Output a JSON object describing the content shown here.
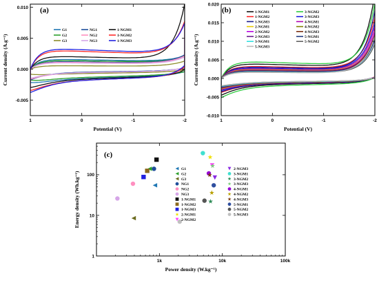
{
  "chart_data": [
    {
      "panel": "(a)",
      "type": "line",
      "title": "",
      "xlabel": "Potential (V)",
      "ylabel": "Current density (A.g⁻¹)",
      "xlim": [
        1.0,
        -2.0
      ],
      "ylim": [
        -0.0075,
        0.0105
      ],
      "xticks": [
        {
          "v": 1,
          "label": "1"
        },
        {
          "v": 0,
          "label": "0"
        },
        {
          "v": -1,
          "label": "-1"
        },
        {
          "v": -2,
          "label": "-2"
        }
      ],
      "yticks": [
        {
          "v": 0.01,
          "label": "0.010"
        },
        {
          "v": 0.005,
          "label": "0.005"
        },
        {
          "v": 0.0,
          "label": "0.000"
        },
        {
          "v": -0.005,
          "label": "-0.005"
        }
      ],
      "legend_position": "top",
      "legend_columns": 3,
      "series": [
        {
          "name": "G1",
          "color": "#1f77b4",
          "params": {
            "g": 0.0017,
            "b": 0.0017,
            "t": 0.001,
            "bt": 0.0006,
            "a": 1.4,
            "k": 10
          }
        },
        {
          "name": "G2",
          "color": "#2ca02c",
          "params": {
            "g": 0.0015,
            "b": 0.0015,
            "t": 0.0011,
            "bt": 0.0005,
            "a": 1.3,
            "k": 10
          }
        },
        {
          "name": "G3",
          "color": "#8c8c2a",
          "params": {
            "g": 0.0006,
            "b": 0.0008,
            "t": 0.0009,
            "bt": 0.0004,
            "a": 1.5,
            "k": 10
          }
        },
        {
          "name": "NG1",
          "color": "#1f4e9b",
          "params": {
            "g": 0.0013,
            "b": 0.0005,
            "t": 0.0014,
            "bt": 0.0005,
            "a": 1.5,
            "k": 10
          }
        },
        {
          "name": "NG2",
          "color": "#ff8fc0",
          "params": {
            "g": 0.0012,
            "b": 0.0006,
            "t": 0.0013,
            "bt": 0.0006,
            "a": 1.5,
            "k": 10
          }
        },
        {
          "name": "NG3",
          "color": "#d6a6e8",
          "params": {
            "g": 0.0011,
            "b": 0.0006,
            "t": 0.0012,
            "bt": 0.0006,
            "a": 1.5,
            "k": 10
          }
        },
        {
          "name": "1-NGM1",
          "color": "#111111",
          "params": {
            "g": 0.0022,
            "b": 0.0018,
            "t": 0.009,
            "bt": 0.001,
            "a": 1.5,
            "k": 14
          }
        },
        {
          "name": "1-NGM2",
          "color": "#ff2a2a",
          "params": {
            "g": 0.0032,
            "b": 0.002,
            "t": 0.0055,
            "bt": 0.0016,
            "a": 1.2,
            "k": 13
          }
        },
        {
          "name": "1-NGM3",
          "color": "#2020e0",
          "params": {
            "g": 0.0035,
            "b": 0.002,
            "t": 0.005,
            "bt": 0.0018,
            "a": 1.2,
            "k": 13
          }
        }
      ]
    },
    {
      "panel": "(b)",
      "type": "line",
      "title": "",
      "xlabel": "Potential (V)",
      "ylabel": "Current density (A.g⁻¹)",
      "xlim": [
        1.0,
        -2.0
      ],
      "ylim": [
        -0.01,
        0.02
      ],
      "xticks": [
        {
          "v": 1,
          "label": "1"
        },
        {
          "v": 0,
          "label": "0"
        },
        {
          "v": -1,
          "label": "-1"
        },
        {
          "v": -2,
          "label": "-2"
        }
      ],
      "yticks": [
        {
          "v": 0.02,
          "label": "0.020"
        },
        {
          "v": 0.015,
          "label": "0.015"
        },
        {
          "v": 0.01,
          "label": "0.010"
        },
        {
          "v": 0.005,
          "label": "0.005"
        },
        {
          "v": 0.0,
          "label": "0.000"
        },
        {
          "v": -0.005,
          "label": "-0.005"
        },
        {
          "v": -0.01,
          "label": "-0.010"
        }
      ],
      "legend_position": "top",
      "legend_columns": 2,
      "series": [
        {
          "name": "1-NGM1",
          "color": "#111111",
          "params": {
            "g": 0.0042,
            "b": 0.0018,
            "t": 0.02,
            "bt": 0.0014,
            "a": 1.2,
            "k": 14
          }
        },
        {
          "name": "3-NGM2",
          "color": "#2ecc40",
          "params": {
            "g": 0.0048,
            "b": 0.0022,
            "t": 0.017,
            "bt": 0.0016,
            "a": 1.2,
            "k": 14
          }
        },
        {
          "name": "1-NGM2",
          "color": "#ff2a2a",
          "params": {
            "g": 0.0035,
            "b": 0.0016,
            "t": 0.014,
            "bt": 0.0014,
            "a": 1.2,
            "k": 13
          }
        },
        {
          "name": "3-NGM3",
          "color": "#2020e0",
          "params": {
            "g": 0.003,
            "b": 0.0015,
            "t": 0.013,
            "bt": 0.0012,
            "a": 1.2,
            "k": 13
          }
        },
        {
          "name": "1-NGM3",
          "color": "#1a1a8c",
          "params": {
            "g": 0.0033,
            "b": 0.0016,
            "t": 0.016,
            "bt": 0.0013,
            "a": 1.2,
            "k": 14
          }
        },
        {
          "name": "4-NGM1",
          "color": "#b000b0",
          "params": {
            "g": 0.0028,
            "b": 0.0014,
            "t": 0.012,
            "bt": 0.0012,
            "a": 1.2,
            "k": 13
          }
        },
        {
          "name": "2-NGM1",
          "color": "#e8c800",
          "params": {
            "g": 0.0026,
            "b": 0.0013,
            "t": 0.011,
            "bt": 0.0011,
            "a": 1.2,
            "k": 13
          }
        },
        {
          "name": "4-NGM2",
          "color": "#808000",
          "params": {
            "g": 0.0025,
            "b": 0.0013,
            "t": 0.01,
            "bt": 0.001,
            "a": 1.2,
            "k": 13
          }
        },
        {
          "name": "2-NGM2",
          "color": "#b800e0",
          "params": {
            "g": 0.0024,
            "b": 0.0012,
            "t": 0.011,
            "bt": 0.001,
            "a": 1.2,
            "k": 13
          }
        },
        {
          "name": "4-NGM3",
          "color": "#7a2e10",
          "params": {
            "g": 0.0023,
            "b": 0.0012,
            "t": 0.01,
            "bt": 0.001,
            "a": 1.2,
            "k": 13
          }
        },
        {
          "name": "2-NGM3",
          "color": "#6a1a8c",
          "params": {
            "g": 0.0022,
            "b": 0.0011,
            "t": 0.009,
            "bt": 0.001,
            "a": 1.2,
            "k": 13
          }
        },
        {
          "name": "5-NGM1",
          "color": "#203a80",
          "params": {
            "g": 0.0021,
            "b": 0.0011,
            "t": 0.009,
            "bt": 0.0009,
            "a": 1.2,
            "k": 13
          }
        },
        {
          "name": "3-NGM1",
          "color": "#30e0e0",
          "params": {
            "g": 0.002,
            "b": 0.0011,
            "t": 0.008,
            "bt": 0.0009,
            "a": 1.2,
            "k": 13
          }
        },
        {
          "name": "5-NGM2",
          "color": "#606060",
          "params": {
            "g": 0.0019,
            "b": 0.001,
            "t": 0.008,
            "bt": 0.0008,
            "a": 1.2,
            "k": 13
          }
        },
        {
          "name": "5-NGM3",
          "color": "#b8b8b8",
          "params": {
            "g": 0.0018,
            "b": 0.001,
            "t": 0.01,
            "bt": 0.0008,
            "a": 1.2,
            "k": 13
          }
        }
      ]
    },
    {
      "panel": "(c)",
      "type": "scatter",
      "title": "",
      "xlabel": "Power density (W.kg⁻¹)",
      "ylabel": "Energy density (Wh.kg⁻¹)",
      "xscale": "log",
      "yscale": "log",
      "xlim": [
        100,
        100000
      ],
      "ylim": [
        1,
        600
      ],
      "xticks": [
        {
          "v": 1000,
          "label": "1k"
        },
        {
          "v": 10000,
          "label": "10k"
        },
        {
          "v": 100000,
          "label": "100k"
        }
      ],
      "yticks": [
        {
          "v": 1,
          "label": "1"
        },
        {
          "v": 10,
          "label": "10"
        },
        {
          "v": 100,
          "label": "100"
        }
      ],
      "legend_position": "center",
      "legend_columns": 2,
      "series": [
        {
          "name": "G1",
          "color": "#1f77b4",
          "marker": "tri-left",
          "points": [
            [
              850,
              55
            ]
          ]
        },
        {
          "name": "G2",
          "color": "#2ca02c",
          "marker": "tri-left",
          "points": [
            [
              700,
              140
            ]
          ]
        },
        {
          "name": "G3",
          "color": "#6b6b1f",
          "marker": "tri-left",
          "points": [
            [
              390,
              8.5
            ]
          ]
        },
        {
          "name": "NG1",
          "color": "#1f4e9b",
          "marker": "circle",
          "points": [
            [
              820,
              140
            ]
          ]
        },
        {
          "name": "NG2",
          "color": "#ff8fc0",
          "marker": "circle",
          "points": [
            [
              380,
              60
            ]
          ]
        },
        {
          "name": "NG3",
          "color": "#d6a6e8",
          "marker": "circle",
          "points": [
            [
              215,
              26
            ]
          ]
        },
        {
          "name": "1-NGM1",
          "color": "#111111",
          "marker": "square",
          "points": [
            [
              900,
              235
            ]
          ]
        },
        {
          "name": "1-NGM2",
          "color": "#8b6a1f",
          "marker": "square",
          "points": [
            [
              640,
              125
            ]
          ]
        },
        {
          "name": "1-NGM3",
          "color": "#2020e0",
          "marker": "square",
          "points": [
            [
              560,
              88
            ]
          ]
        },
        {
          "name": "2-NGM1",
          "color": "#f0e000",
          "marker": "star",
          "points": [
            [
              6400,
              270
            ]
          ]
        },
        {
          "name": "2-NGM2",
          "color": "#ff44ff",
          "marker": "tri-down",
          "points": [
            [
              6900,
              170
            ]
          ]
        },
        {
          "name": "2-NGM3",
          "color": "#8a2be2",
          "marker": "tri-down",
          "points": [
            [
              7600,
              85
            ]
          ]
        },
        {
          "name": "3-NGM1",
          "color": "#40e0d0",
          "marker": "circle",
          "points": [
            [
              4900,
              340
            ]
          ]
        },
        {
          "name": "3-NGM2",
          "color": "#2e8b57",
          "marker": "star",
          "points": [
            [
              6500,
              22
            ]
          ]
        },
        {
          "name": "3-NGM3",
          "color": "#7ccd7c",
          "marker": "star",
          "points": [
            [
              7000,
              165
            ]
          ]
        },
        {
          "name": "4-NGM1",
          "color": "#9400d3",
          "marker": "circle",
          "points": [
            [
              6100,
              108
            ]
          ]
        },
        {
          "name": "4-NGM2",
          "color": "#b8a000",
          "marker": "star",
          "points": [
            [
              6800,
              36
            ]
          ]
        },
        {
          "name": "4-NGM3",
          "color": "#7a3b10",
          "marker": "star",
          "points": [
            [
              6300,
              98
            ]
          ]
        },
        {
          "name": "5-NGM1",
          "color": "#2f4f9f",
          "marker": "circle",
          "points": [
            [
              7300,
              55
            ]
          ]
        },
        {
          "name": "5-NGM2",
          "color": "#555555",
          "marker": "circle",
          "points": [
            [
              5200,
              23
            ]
          ]
        },
        {
          "name": "5-NGM3",
          "color": "#c0c0c0",
          "marker": "circle",
          "points": [
            [
              2100,
              7
            ]
          ]
        }
      ]
    }
  ]
}
